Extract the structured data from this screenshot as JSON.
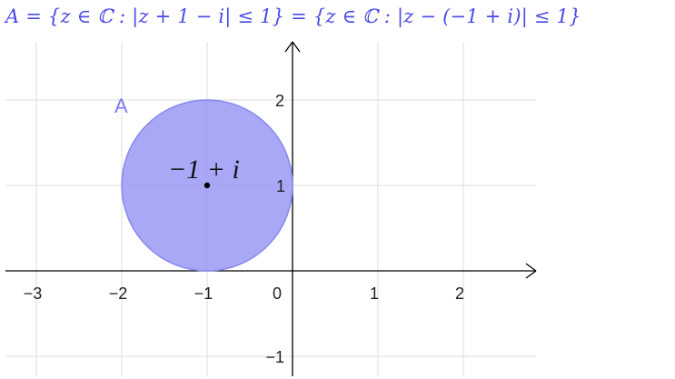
{
  "formula": {
    "text": "A = {z ∈ ℂ : |z + 1 − i| ≤ 1} = {z ∈ ℂ : |z − (−1 + i)| ≤ 1}"
  },
  "diagram": {
    "x_range": [
      -3.45,
      2.85
    ],
    "y_range": [
      -1.25,
      2.6
    ],
    "grid": true,
    "x_ticks": [
      {
        "value": -3,
        "label": "−3"
      },
      {
        "value": -2,
        "label": "−2"
      },
      {
        "value": -1,
        "label": "−1"
      },
      {
        "value": 1,
        "label": "1"
      },
      {
        "value": 2,
        "label": "2"
      }
    ],
    "y_ticks": [
      {
        "value": 2,
        "label": "2"
      },
      {
        "value": 1,
        "label": "1"
      },
      {
        "value": -1,
        "label": "−1"
      }
    ],
    "origin_label": "0",
    "region": {
      "name": "A",
      "center": {
        "x": -1,
        "y": 1
      },
      "radius": 1,
      "fill_color": "#9999f5",
      "stroke_color": "#8888ee"
    },
    "center_point": {
      "x": -1,
      "y": 1,
      "label": "−1 + i"
    }
  }
}
